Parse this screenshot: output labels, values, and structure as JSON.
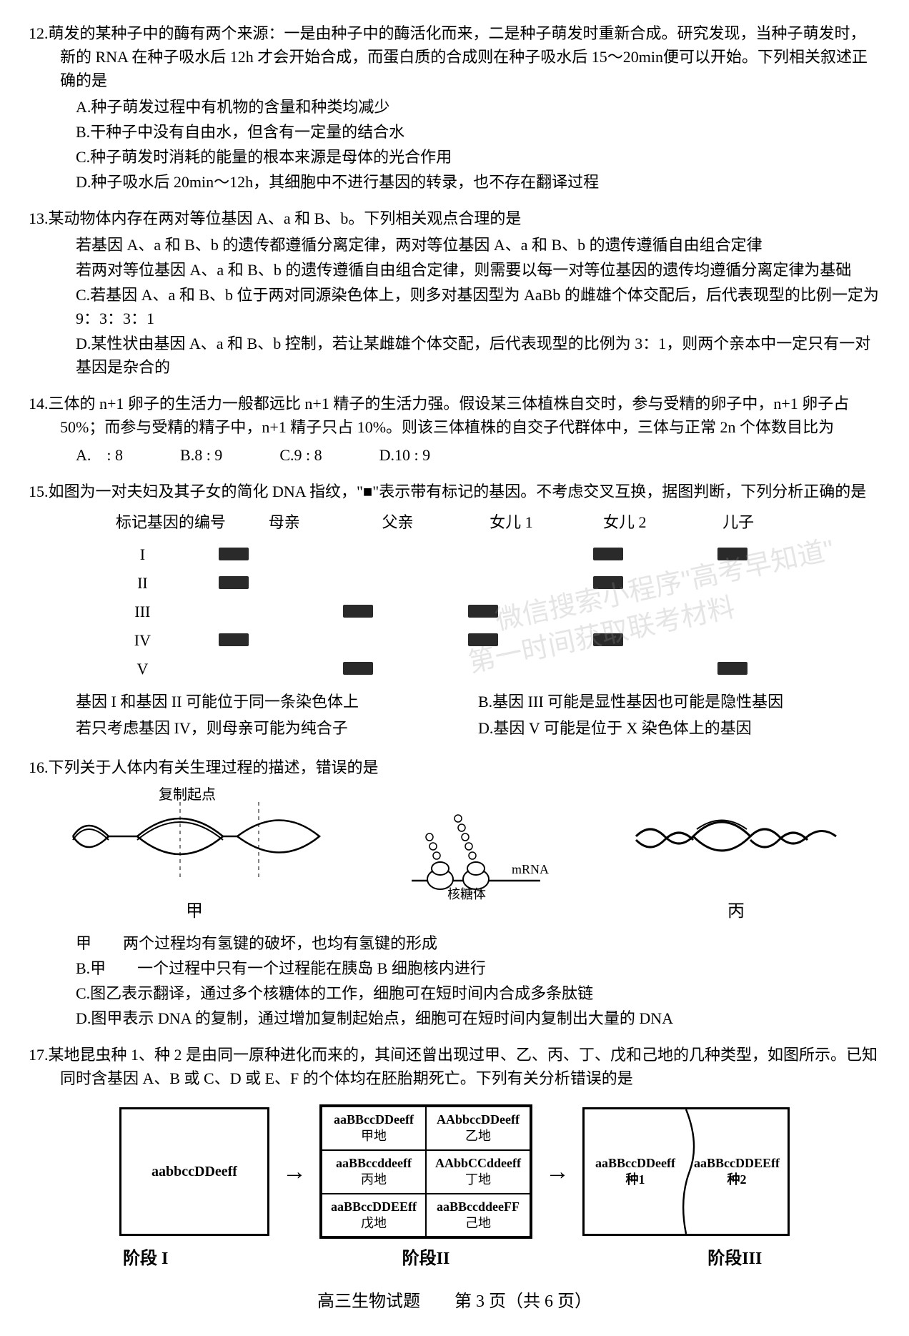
{
  "q12": {
    "stem": "12.萌发的某种子中的酶有两个来源：一是由种子中的酶活化而来，二是种子萌发时重新合成。研究发现，当种子萌发时，新的 RNA 在种子吸水后 12h 才会开始合成，而蛋白质的合成则在种子吸水后 15～20min便可以开始。下列相关叙述正确的是",
    "A": "A.种子萌发过程中有机物的含量和种类均减少",
    "B": "B.干种子中没有自由水，但含有一定量的结合水",
    "C": "C.种子萌发时消耗的能量的根本来源是母体的光合作用",
    "D": "D.种子吸水后 20min～12h，其细胞中不进行基因的转录，也不存在翻译过程"
  },
  "q13": {
    "stem": "13.某动物体内存在两对等位基因 A、a 和 B、b。下列相关观点合理的是",
    "A": "若基因 A、a 和 B、b 的遗传都遵循分离定律，两对等位基因 A、a 和 B、b 的遗传遵循自由组合定律",
    "B": "若两对等位基因 A、a 和 B、b 的遗传遵循自由组合定律，则需要以每一对等位基因的遗传均遵循分离定律为基础",
    "C": "C.若基因 A、a 和 B、b 位于两对同源染色体上，则多对基因型为 AaBb 的雌雄个体交配后，后代表现型的比例一定为 9：3：3：1",
    "D": "D.某性状由基因 A、a 和 B、b 控制，若让某雌雄个体交配，后代表现型的比例为 3：1，则两个亲本中一定只有一对基因是杂合的"
  },
  "q14": {
    "stem": "14.三体的 n+1 卵子的生活力一般都远比 n+1 精子的生活力强。假设某三体植株自交时，参与受精的卵子中，n+1 卵子占 50%；而参与受精的精子中，n+1 精子只占 10%。则该三体植株的自交子代群体中，三体与正常 2n 个体数目比为",
    "A": "A.　: 8",
    "B": "B.8 : 9",
    "C": "C.9 : 8",
    "D": "D.10 : 9"
  },
  "q15": {
    "stem": "15.如图为一对夫妇及其子女的简化 DNA 指纹，\"■\"表示带有标记的基因。不考虑交叉互换，据图判断，下列分析正确的是",
    "headers": [
      "标记基因的编号",
      "母亲",
      "父亲",
      "女儿 1",
      "女儿 2",
      "儿子"
    ],
    "rows": [
      {
        "label": "I",
        "cells": [
          1,
          0,
          0,
          1,
          1
        ]
      },
      {
        "label": "II",
        "cells": [
          1,
          0,
          0,
          1,
          0
        ]
      },
      {
        "label": "III",
        "cells": [
          0,
          1,
          1,
          0,
          0
        ]
      },
      {
        "label": "IV",
        "cells": [
          1,
          0,
          1,
          1,
          0
        ]
      },
      {
        "label": "V",
        "cells": [
          0,
          1,
          0,
          0,
          1
        ]
      }
    ],
    "A": "基因 I 和基因 II 可能位于同一条染色体上",
    "B": "B.基因 III 可能是显性基因也可能是隐性基因",
    "C": "若只考虑基因 IV，则母亲可能为纯合子",
    "D": "D.基因 V 可能是位于 X 染色体上的基因"
  },
  "q16": {
    "stem": "16.下列关于人体内有关生理过程的描述，错误的是",
    "fig_labels": {
      "jia": "甲",
      "bing": "丙"
    },
    "fig_text": {
      "origin": "复制起点",
      "ribosome": "核糖体",
      "mrna": "mRNA"
    },
    "A": "甲　　两个过程均有氢键的破坏，也均有氢键的形成",
    "B": "B.甲　　一个过程中只有一个过程能在胰岛 B 细胞核内进行",
    "C": "C.图乙表示翻译，通过多个核糖体的工作，细胞可在短时间内合成多条肽链",
    "D": "D.图甲表示 DNA 的复制，通过增加复制起始点，细胞可在短时间内复制出大量的 DNA"
  },
  "q17": {
    "stem": "17.某地昆虫种 1、种 2 是由同一原种进化而来的，其间还曾出现过甲、乙、丙、丁、戊和己地的几种类型，如图所示。已知同时含基因 A、B 或 C、D 或 E、F 的个体均在胚胎期死亡。下列有关分析错误的是",
    "stage1": "aabbccDDeeff",
    "stage2": [
      {
        "geno": "aaBBccDDeeff",
        "place": "甲地"
      },
      {
        "geno": "AAbbccDDeeff",
        "place": "乙地"
      },
      {
        "geno": "aaBBccddeeff",
        "place": "丙地"
      },
      {
        "geno": "AAbbCCddeeff",
        "place": "丁地"
      },
      {
        "geno": "aaBBccDDEEff",
        "place": "戊地"
      },
      {
        "geno": "aaBBccddeeFF",
        "place": "己地"
      }
    ],
    "stage3": {
      "s1_geno": "aaBBccDDeeff",
      "s1_name": "种1",
      "s2_geno": "aaBBccDDEEff",
      "s2_name": "种2"
    },
    "labels": {
      "s1": "阶段 I",
      "s2": "阶段II",
      "s3": "阶段III"
    }
  },
  "watermark": {
    "line1": "微信搜索小程序\"高考早知道\"",
    "line2": "第一时间获取联考材料"
  },
  "footer": "高三生物试题　　第 3 页（共 6 页）"
}
